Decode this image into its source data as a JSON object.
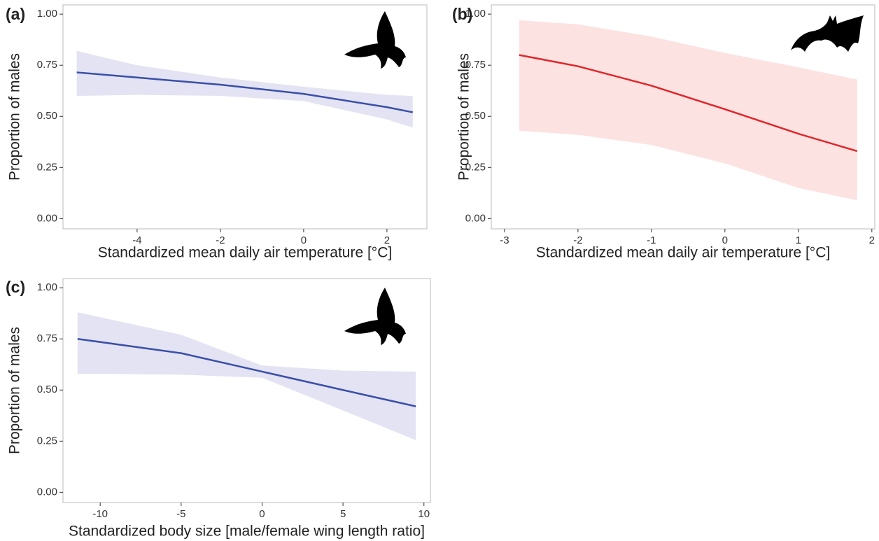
{
  "chart_data": [
    {
      "type": "line",
      "panel_label": "(a)",
      "xlabel": "Standardized mean daily air temperature [°C]",
      "ylabel": "Proportion of males",
      "x": [
        -5.45,
        -4,
        -2,
        0,
        2,
        2.62
      ],
      "values": [
        0.715,
        0.69,
        0.655,
        0.61,
        0.545,
        0.52
      ],
      "upper": [
        0.82,
        0.75,
        0.69,
        0.645,
        0.605,
        0.6
      ],
      "lower": [
        0.6,
        0.605,
        0.6,
        0.575,
        0.485,
        0.445
      ],
      "color": "#3a4fa8",
      "band_color": "#e3e3f3",
      "xlim": [
        -5.78,
        2.96
      ],
      "ylim": [
        -0.05,
        1.045
      ],
      "xticks": [
        -4,
        -2,
        0,
        2
      ],
      "yticks": [
        {
          "value": 0,
          "label": "0.00"
        },
        {
          "value": 0.25,
          "label": "0.25"
        },
        {
          "value": 0.5,
          "label": "0.50"
        },
        {
          "value": 0.75,
          "label": "0.75"
        },
        {
          "value": 1,
          "label": "1.00"
        }
      ]
    },
    {
      "type": "line",
      "panel_label": "(b)",
      "xlabel": "Standardized mean daily air temperature [°C]",
      "ylabel": "Proportion of males",
      "x": [
        -2.8,
        -2,
        -1,
        0,
        1,
        1.8
      ],
      "values": [
        0.8,
        0.745,
        0.65,
        0.535,
        0.415,
        0.33
      ],
      "upper": [
        0.97,
        0.95,
        0.89,
        0.81,
        0.74,
        0.68
      ],
      "lower": [
        0.43,
        0.41,
        0.36,
        0.27,
        0.15,
        0.09
      ],
      "color": "#e0262a",
      "band_color": "#fde2e2",
      "xlim": [
        -3.18,
        2.04
      ],
      "ylim": [
        -0.05,
        1.045
      ],
      "xticks": [
        -3,
        -2,
        -1,
        0,
        1,
        2
      ],
      "yticks": [
        {
          "value": 0,
          "label": "0.00"
        },
        {
          "value": 0.25,
          "label": "0.25"
        },
        {
          "value": 0.5,
          "label": "0.50"
        },
        {
          "value": 0.75,
          "label": "0.75"
        },
        {
          "value": 1,
          "label": "1.00"
        }
      ]
    },
    {
      "type": "line",
      "panel_label": "(c)",
      "xlabel": "Standardized body size [male/female wing length ratio]",
      "ylabel": "Proportion of males",
      "x": [
        -11.4,
        -5,
        0,
        5,
        9.5
      ],
      "values": [
        0.75,
        0.68,
        0.59,
        0.5,
        0.42
      ],
      "upper": [
        0.88,
        0.77,
        0.62,
        0.595,
        0.59
      ],
      "lower": [
        0.58,
        0.575,
        0.56,
        0.4,
        0.255
      ],
      "color": "#3a4fa8",
      "band_color": "#e3e3f3",
      "xlim": [
        -12.3,
        10.4
      ],
      "ylim": [
        -0.05,
        1.045
      ],
      "xticks": [
        -10,
        -5,
        0,
        5,
        10
      ],
      "yticks": [
        {
          "value": 0,
          "label": "0.00"
        },
        {
          "value": 0.25,
          "label": "0.25"
        },
        {
          "value": 0.5,
          "label": "0.50"
        },
        {
          "value": 0.75,
          "label": "0.75"
        },
        {
          "value": 1,
          "label": "1.00"
        }
      ]
    }
  ]
}
